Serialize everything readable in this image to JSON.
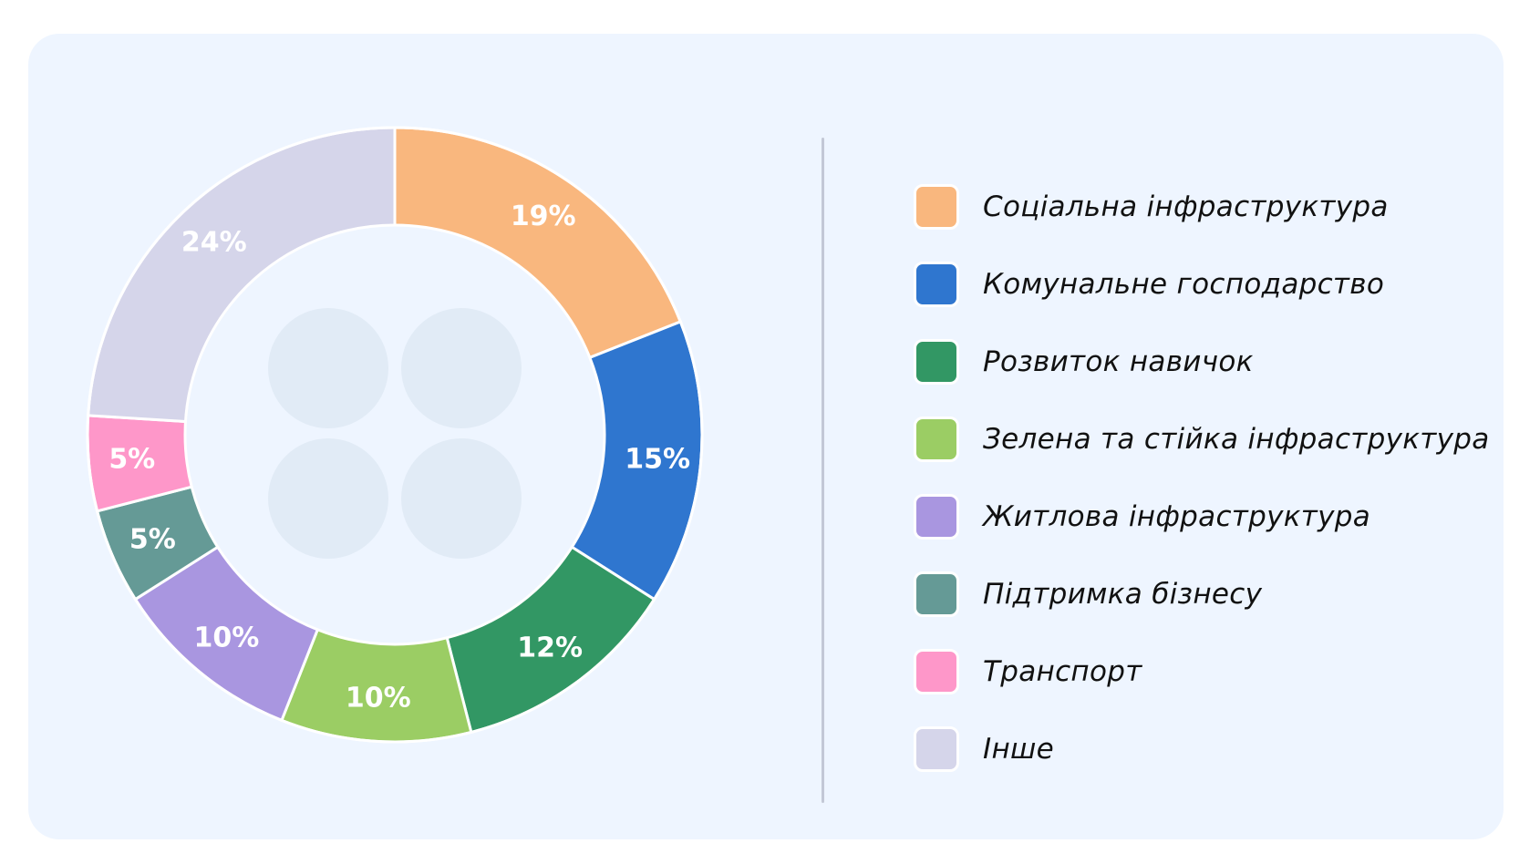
{
  "chart_data": {
    "type": "pie",
    "variant": "donut",
    "title": "",
    "categories": [
      "Соціальна інфраструктура",
      "Комунальне господарство",
      "Розвиток навичок",
      "Зелена та стійка інфраструктура",
      "Житлова інфраструктура",
      "Підтримка бізнесу",
      "Транспорт",
      "Інше"
    ],
    "values": [
      19,
      15,
      12,
      10,
      10,
      5,
      5,
      24
    ],
    "labels": [
      "19%",
      "15%",
      "12%",
      "10%",
      "10%",
      "5%",
      "5%",
      "24%"
    ],
    "colors": [
      "#f9b77e",
      "#2f76cf",
      "#329764",
      "#9bcd64",
      "#a996e0",
      "#659a96",
      "#fe97c9",
      "#d5d5ea"
    ],
    "unit": "%",
    "legend_position": "right",
    "start_angle": "12 o'clock, clockwise"
  },
  "legend": {
    "items": [
      {
        "label": "Соціальна інфраструктура",
        "color": "#f9b77e"
      },
      {
        "label": "Комунальне господарство",
        "color": "#2f76cf"
      },
      {
        "label": "Розвиток навичок",
        "color": "#329764"
      },
      {
        "label": "Зелена та стійка інфраструктура",
        "color": "#9bcd64"
      },
      {
        "label": "Житлова інфраструктура",
        "color": "#a996e0"
      },
      {
        "label": "Підтримка бізнесу",
        "color": "#659a96"
      },
      {
        "label": "Транспорт",
        "color": "#fe97c9"
      },
      {
        "label": "Інше",
        "color": "#d5d5ea"
      }
    ]
  },
  "center_decoration": {
    "icon": "four-circles-placeholder-icon",
    "color": "#e1ebf6"
  }
}
